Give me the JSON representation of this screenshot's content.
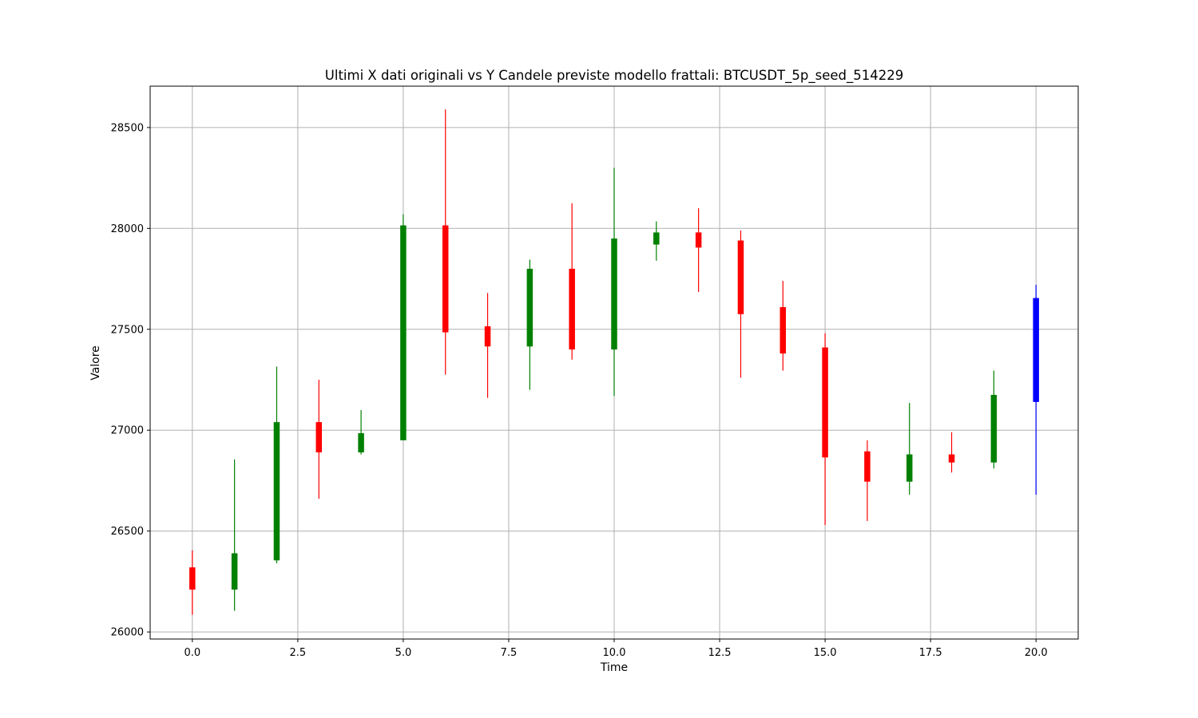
{
  "chart_data": {
    "type": "candlestick",
    "title": "Ultimi X dati originali vs Y Candele previste modello frattali: BTCUSDT_5p_seed_514229",
    "xlabel": "Time",
    "ylabel": "Valore",
    "xlim": [
      -1.0,
      21.0
    ],
    "ylim": [
      25965,
      28705
    ],
    "xticks": [
      0.0,
      2.5,
      5.0,
      7.5,
      10.0,
      12.5,
      15.0,
      17.5,
      20.0
    ],
    "xtick_labels": [
      "0.0",
      "2.5",
      "5.0",
      "7.5",
      "10.0",
      "12.5",
      "15.0",
      "17.5",
      "20.0"
    ],
    "yticks": [
      26000,
      26500,
      27000,
      27500,
      28000,
      28500
    ],
    "ytick_labels": [
      "26000",
      "26500",
      "27000",
      "27500",
      "28000",
      "28500"
    ],
    "grid": true,
    "colors": {
      "up": "#008000",
      "down": "#ff0000",
      "predicted": "#0000ff",
      "grid": "#b0b0b0"
    },
    "candles": [
      {
        "t": 0,
        "open": 26320,
        "high": 26405,
        "low": 26085,
        "close": 26210,
        "color": "red"
      },
      {
        "t": 1,
        "open": 26210,
        "high": 26855,
        "low": 26105,
        "close": 26390,
        "color": "green"
      },
      {
        "t": 2,
        "open": 26355,
        "high": 27315,
        "low": 26340,
        "close": 27040,
        "color": "green"
      },
      {
        "t": 3,
        "open": 27040,
        "high": 27250,
        "low": 26660,
        "close": 26890,
        "color": "red"
      },
      {
        "t": 4,
        "open": 26890,
        "high": 27100,
        "low": 26880,
        "close": 26985,
        "color": "green"
      },
      {
        "t": 5,
        "open": 26950,
        "high": 28070,
        "low": 26950,
        "close": 28015,
        "color": "green"
      },
      {
        "t": 6,
        "open": 28015,
        "high": 28590,
        "low": 27275,
        "close": 27485,
        "color": "red"
      },
      {
        "t": 7,
        "open": 27515,
        "high": 27680,
        "low": 27160,
        "close": 27415,
        "color": "red"
      },
      {
        "t": 8,
        "open": 27415,
        "high": 27845,
        "low": 27200,
        "close": 27800,
        "color": "green"
      },
      {
        "t": 9,
        "open": 27800,
        "high": 28125,
        "low": 27350,
        "close": 27400,
        "color": "red"
      },
      {
        "t": 10,
        "open": 27400,
        "high": 28300,
        "low": 27170,
        "close": 27950,
        "color": "green"
      },
      {
        "t": 11,
        "open": 27920,
        "high": 28035,
        "low": 27840,
        "close": 27980,
        "color": "green"
      },
      {
        "t": 12,
        "open": 27980,
        "high": 28100,
        "low": 27685,
        "close": 27905,
        "color": "red"
      },
      {
        "t": 13,
        "open": 27940,
        "high": 27990,
        "low": 27260,
        "close": 27575,
        "color": "red"
      },
      {
        "t": 14,
        "open": 27610,
        "high": 27740,
        "low": 27295,
        "close": 27380,
        "color": "red"
      },
      {
        "t": 15,
        "open": 27410,
        "high": 27480,
        "low": 26530,
        "close": 26865,
        "color": "red"
      },
      {
        "t": 16,
        "open": 26895,
        "high": 26950,
        "low": 26550,
        "close": 26745,
        "color": "red"
      },
      {
        "t": 17,
        "open": 26745,
        "high": 27135,
        "low": 26680,
        "close": 26880,
        "color": "green"
      },
      {
        "t": 18,
        "open": 26880,
        "high": 26990,
        "low": 26790,
        "close": 26840,
        "color": "red"
      },
      {
        "t": 19,
        "open": 26840,
        "high": 27295,
        "low": 26810,
        "close": 27175,
        "color": "green"
      },
      {
        "t": 20,
        "open": 27140,
        "high": 27720,
        "low": 26680,
        "close": 27655,
        "color": "blue"
      }
    ]
  }
}
